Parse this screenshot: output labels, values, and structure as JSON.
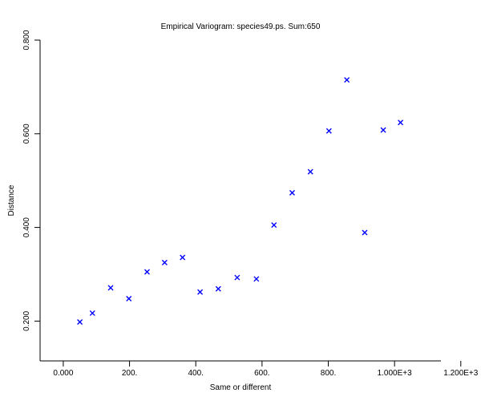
{
  "chart_data": {
    "type": "scatter",
    "title": "Empirical Variogram: species49.ps. Sum:650",
    "xlabel": "Same or different",
    "ylabel": "Distance",
    "xlim": [
      -70,
      1140
    ],
    "ylim": [
      0.115,
      0.8
    ],
    "x_ticks": [
      0,
      200,
      400,
      600,
      800,
      1000,
      1200
    ],
    "x_tick_labels": [
      "0.000",
      "200.",
      "400.",
      "600.",
      "800.",
      "1.000E+3",
      "1.200E+3"
    ],
    "y_ticks": [
      0.2,
      0.4,
      0.6,
      0.8
    ],
    "y_tick_labels": [
      "0.200",
      "0.400",
      "0.600",
      "0.800"
    ],
    "grid": false,
    "marker": "x",
    "marker_color": "#0000ff",
    "points": [
      {
        "x": 50,
        "y": 0.198
      },
      {
        "x": 88,
        "y": 0.217
      },
      {
        "x": 143,
        "y": 0.271
      },
      {
        "x": 198,
        "y": 0.248
      },
      {
        "x": 253,
        "y": 0.305
      },
      {
        "x": 306,
        "y": 0.325
      },
      {
        "x": 360,
        "y": 0.336
      },
      {
        "x": 413,
        "y": 0.262
      },
      {
        "x": 468,
        "y": 0.269
      },
      {
        "x": 525,
        "y": 0.293
      },
      {
        "x": 583,
        "y": 0.29
      },
      {
        "x": 636,
        "y": 0.405
      },
      {
        "x": 691,
        "y": 0.474
      },
      {
        "x": 746,
        "y": 0.519
      },
      {
        "x": 802,
        "y": 0.606
      },
      {
        "x": 856,
        "y": 0.715
      },
      {
        "x": 910,
        "y": 0.389
      },
      {
        "x": 966,
        "y": 0.608
      },
      {
        "x": 1018,
        "y": 0.624
      }
    ]
  }
}
